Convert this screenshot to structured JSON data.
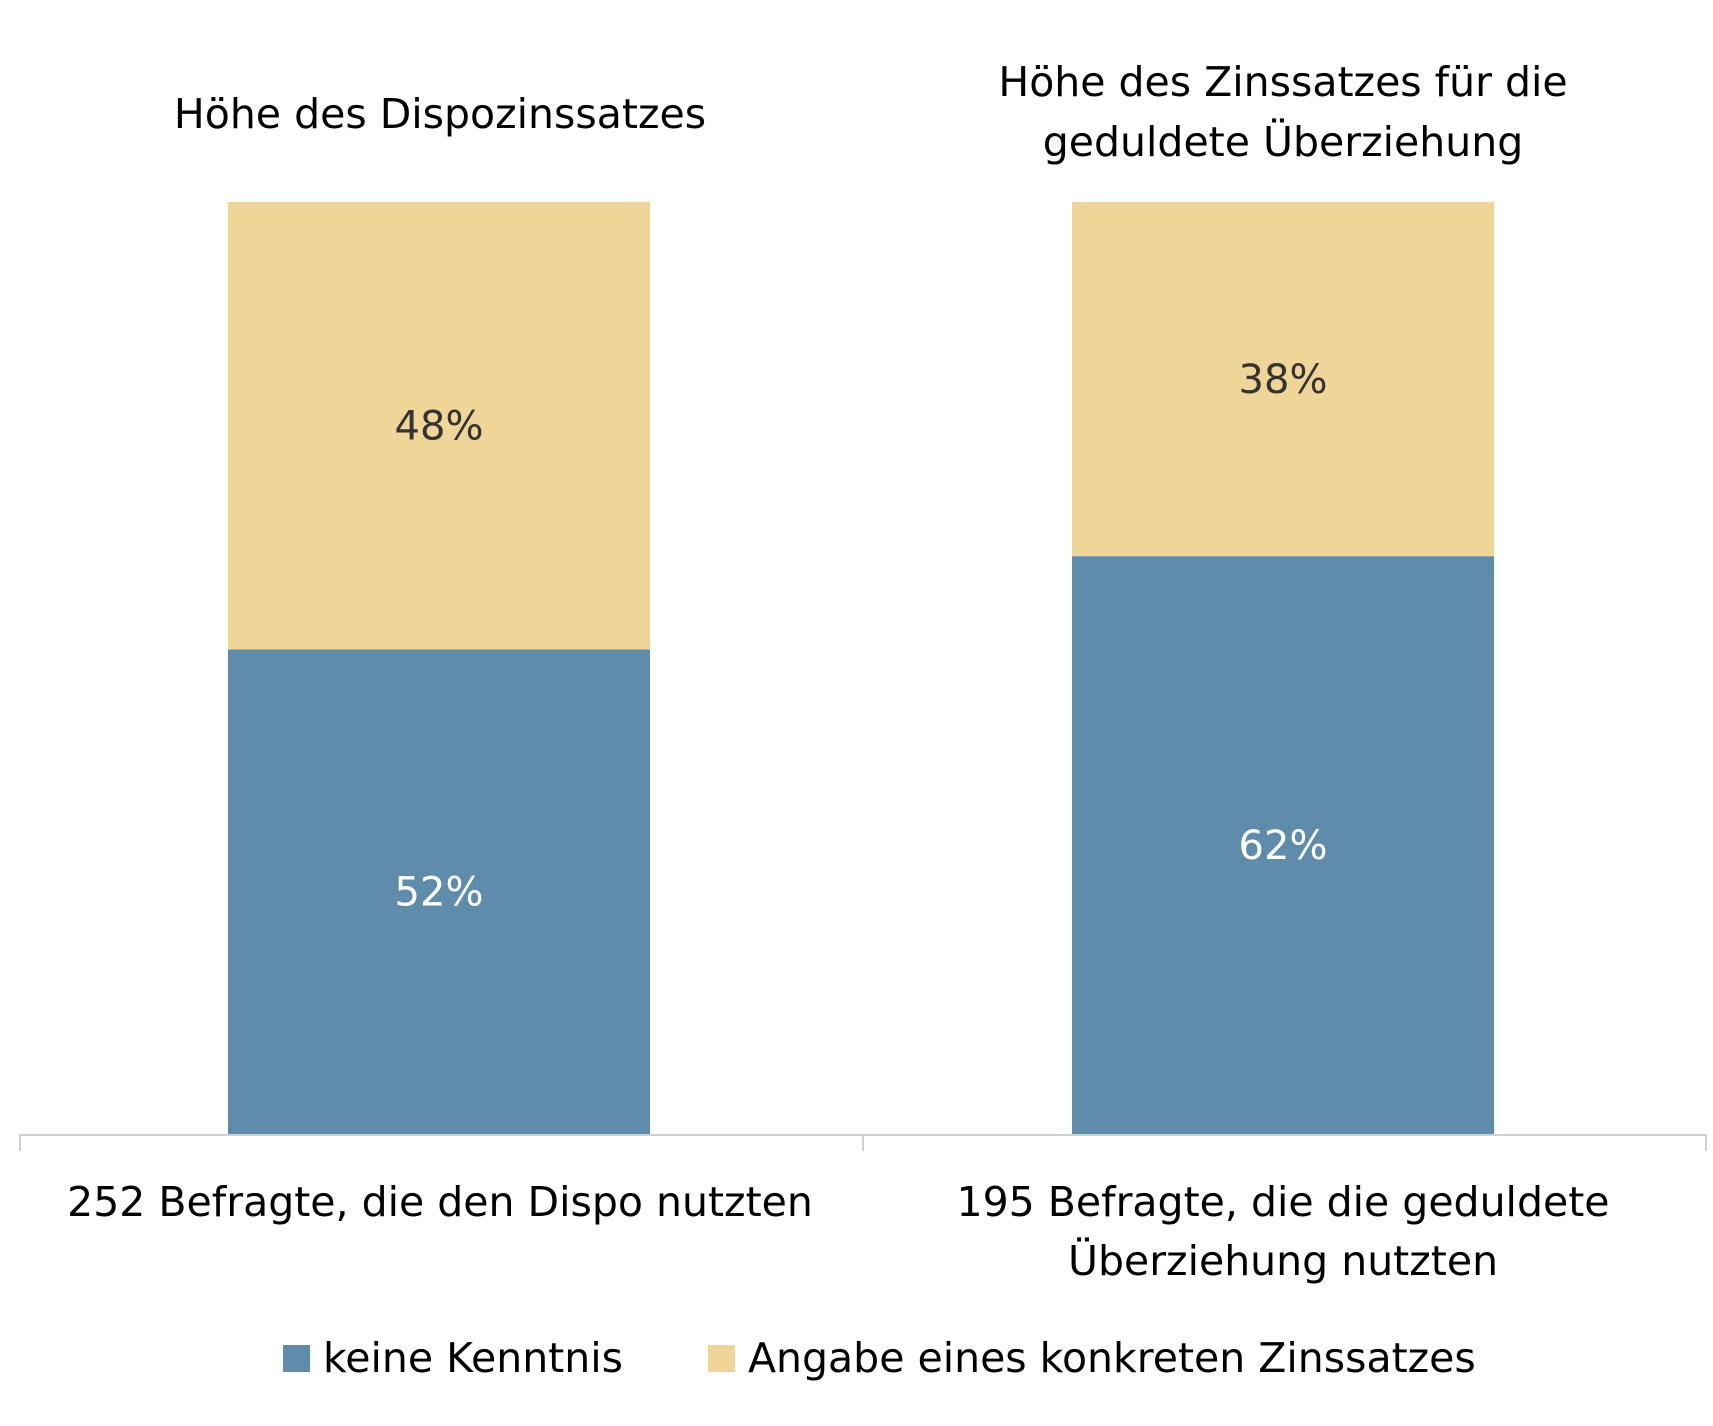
{
  "chart_data": {
    "type": "bar",
    "stacked": true,
    "group_titles": [
      [
        "Höhe des Dispozinssatzes"
      ],
      [
        "Höhe des Zinssatzes für die",
        "geduldete Überziehung"
      ]
    ],
    "categories": [
      [
        "252 Befragte, die den Dispo nutzten"
      ],
      [
        "195 Befragte, die die geduldete",
        "Überziehung nutzten"
      ]
    ],
    "series": [
      {
        "name": "keine Kenntnis",
        "values": [
          52,
          62
        ],
        "labels": [
          "52%",
          "62%"
        ],
        "color": "#608CAB",
        "label_color": "#ffffff"
      },
      {
        "name": "Angabe eines konkreten Zinssatzes",
        "values": [
          48,
          38
        ],
        "labels": [
          "48%",
          "38%"
        ],
        "color": "#EFD597",
        "label_color": "#333333"
      }
    ],
    "ylim": [
      0,
      100
    ],
    "unit": "%",
    "grid": false,
    "legend_position": "bottom"
  }
}
